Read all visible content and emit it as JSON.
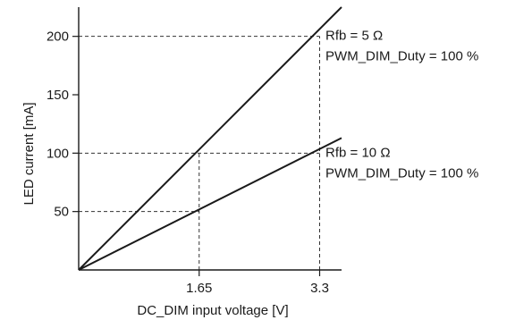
{
  "chart_data": {
    "type": "line",
    "title": "",
    "xlabel": "DC_DIM input voltage [V]",
    "ylabel": "LED current [mA]",
    "xlim": [
      0,
      3.6
    ],
    "ylim": [
      0,
      225
    ],
    "x_ticks": [
      {
        "value": 1.65,
        "label": "1.65"
      },
      {
        "value": 3.3,
        "label": "3.3"
      }
    ],
    "y_ticks": [
      {
        "value": 50,
        "label": "50"
      },
      {
        "value": 100,
        "label": "100"
      },
      {
        "value": 150,
        "label": "150"
      },
      {
        "value": 200,
        "label": "200"
      }
    ],
    "grid": false,
    "series": [
      {
        "x": [
          0,
          3.6
        ],
        "y": [
          0,
          225
        ],
        "color": "#1a1a1a"
      },
      {
        "x": [
          0,
          3.6
        ],
        "y": [
          0,
          113
        ],
        "color": "#1a1a1a"
      }
    ],
    "reference_lines": [
      {
        "from": [
          0,
          200
        ],
        "to": [
          3.3,
          200
        ]
      },
      {
        "from": [
          0,
          100
        ],
        "to": [
          3.3,
          100
        ]
      },
      {
        "from": [
          0,
          50
        ],
        "to": [
          1.65,
          50
        ]
      },
      {
        "from": [
          1.65,
          0
        ],
        "to": [
          1.65,
          100
        ]
      },
      {
        "from": [
          3.3,
          0
        ],
        "to": [
          3.3,
          200
        ]
      }
    ],
    "annotations": [
      {
        "lines": [
          "Rfb = 5 Ω",
          "PWM_DIM_Duty = 100 %"
        ],
        "x": 3.38,
        "y": 197
      },
      {
        "lines": [
          "Rfb = 10 Ω",
          "PWM_DIM_Duty = 100 %"
        ],
        "x": 3.38,
        "y": 97
      }
    ]
  }
}
